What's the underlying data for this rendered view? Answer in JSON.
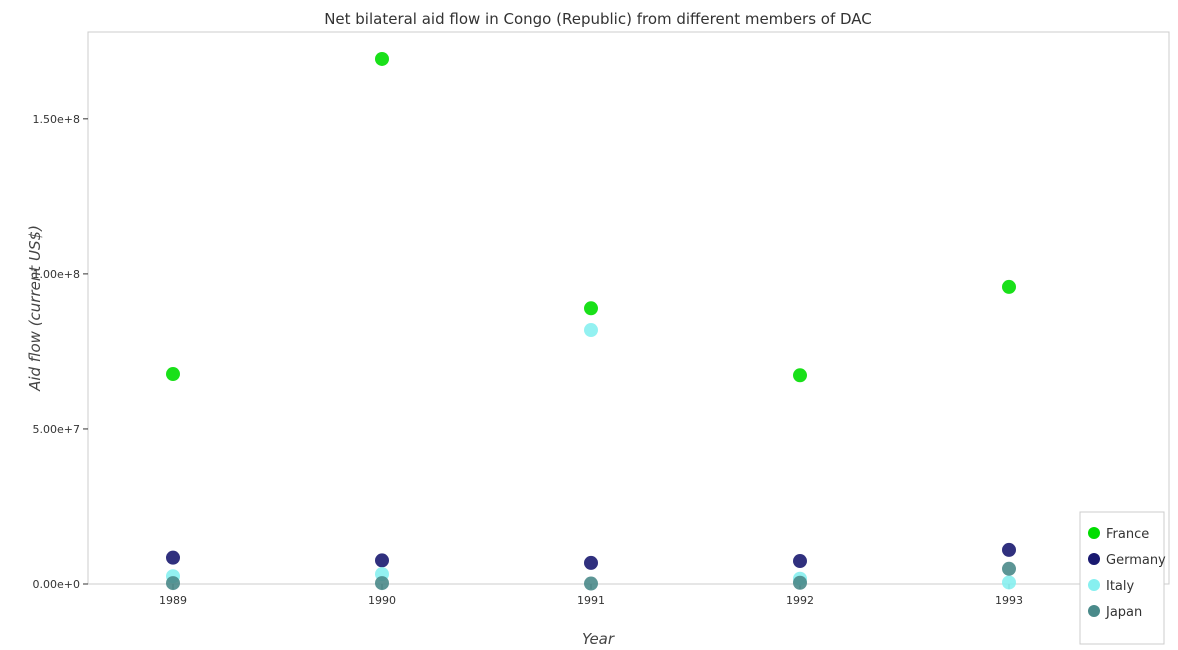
{
  "chart_data": {
    "type": "scatter",
    "title": "Net bilateral aid flow in Congo (Republic) from different members of DAC",
    "xlabel": "Year",
    "ylabel": "Aid flow (current US$)",
    "categories": [
      "1989",
      "1990",
      "1991",
      "1992",
      "1993"
    ],
    "ylim": [
      0,
      178000000
    ],
    "yticks": [
      0,
      50000000,
      100000000,
      150000000
    ],
    "ytick_labels": [
      "0.00e+0",
      "5.00e+7",
      "1.00e+8",
      "1.50e+8"
    ],
    "legend_position": "bottom-right",
    "grid": false,
    "series": [
      {
        "name": "France",
        "color": "#00dd00",
        "values": [
          67700000,
          169300000,
          88900000,
          67300000,
          95800000
        ]
      },
      {
        "name": "Germany",
        "color": "#191970",
        "values": [
          8500000,
          7600000,
          6800000,
          7400000,
          11000000
        ]
      },
      {
        "name": "Italy",
        "color": "#87f0f0",
        "values": [
          2500000,
          3200000,
          81900000,
          1700000,
          500000
        ]
      },
      {
        "name": "Japan",
        "color": "#4a8a8a",
        "values": [
          300000,
          300000,
          150000,
          400000,
          4900000
        ]
      }
    ]
  }
}
